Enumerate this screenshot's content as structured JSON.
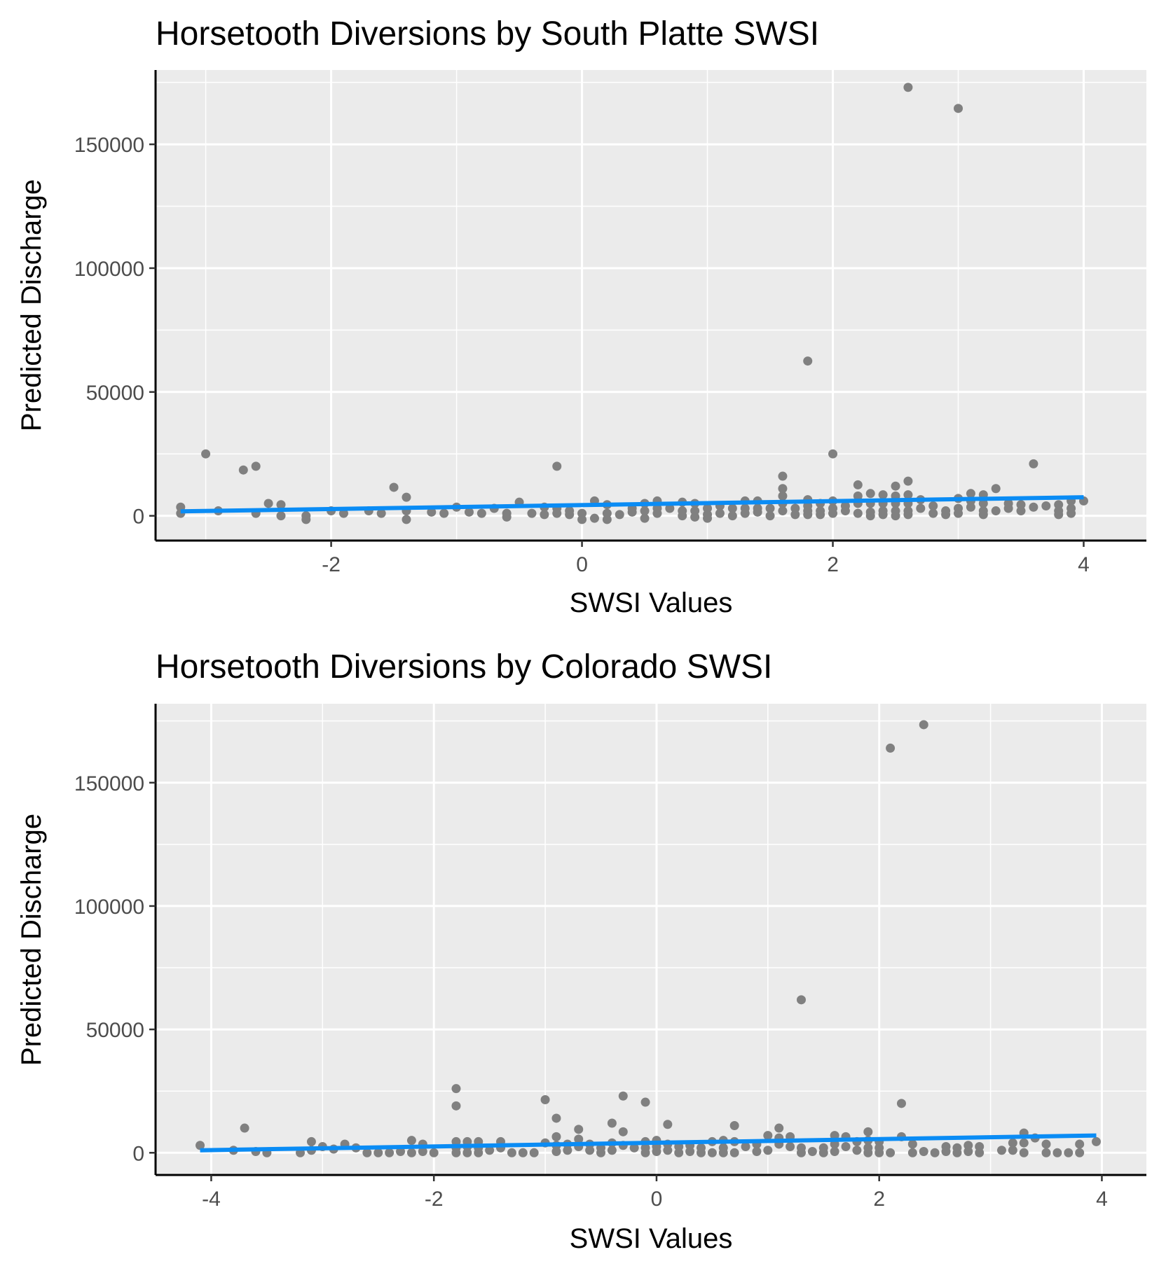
{
  "chart_data": [
    {
      "type": "scatter",
      "title": "Horsetooth Diversions by South Platte SWSI",
      "xlabel": "SWSI Values",
      "ylabel": "Predicted Discharge",
      "xlim": [
        -3.4,
        4.5
      ],
      "ylim": [
        -10000,
        180000
      ],
      "x_ticks": [
        -2,
        0,
        2,
        4
      ],
      "y_ticks": [
        0,
        50000,
        100000,
        150000
      ],
      "x_tick_labels": [
        "-2",
        "0",
        "2",
        "4"
      ],
      "y_tick_labels": [
        "0",
        "50000",
        "100000",
        "150000"
      ],
      "grid": true,
      "point_color": "#808080",
      "line_color": "#0a8cf5",
      "panel_color": "#ebebeb",
      "trend_line": {
        "x": [
          -3.2,
          4.0
        ],
        "y": [
          1800,
          7500
        ]
      },
      "points": [
        [
          -3.2,
          3500
        ],
        [
          -3.2,
          1000
        ],
        [
          -3.0,
          25000
        ],
        [
          -2.9,
          2000
        ],
        [
          -2.7,
          18500
        ],
        [
          -2.6,
          20000
        ],
        [
          -2.6,
          1000
        ],
        [
          -2.5,
          5000
        ],
        [
          -2.4,
          4500
        ],
        [
          -2.4,
          0
        ],
        [
          -2.2,
          0
        ],
        [
          -2.2,
          -1500
        ],
        [
          -2.0,
          2000
        ],
        [
          -1.9,
          1000
        ],
        [
          -1.7,
          2000
        ],
        [
          -1.6,
          1000
        ],
        [
          -1.5,
          11500
        ],
        [
          -1.4,
          7500
        ],
        [
          -1.4,
          2000
        ],
        [
          -1.4,
          -1500
        ],
        [
          -1.2,
          1500
        ],
        [
          -1.1,
          1000
        ],
        [
          -1.0,
          3500
        ],
        [
          -0.9,
          1500
        ],
        [
          -0.8,
          1000
        ],
        [
          -0.7,
          3000
        ],
        [
          -0.6,
          1000
        ],
        [
          -0.6,
          -500
        ],
        [
          -0.5,
          5500
        ],
        [
          -0.4,
          1000
        ],
        [
          -0.3,
          3500
        ],
        [
          -0.3,
          500
        ],
        [
          -0.2,
          20000
        ],
        [
          -0.2,
          3000
        ],
        [
          -0.2,
          1000
        ],
        [
          -0.1,
          2000
        ],
        [
          -0.1,
          500
        ],
        [
          0.0,
          1000
        ],
        [
          0.0,
          -1500
        ],
        [
          0.1,
          6000
        ],
        [
          0.1,
          -1000
        ],
        [
          0.2,
          4500
        ],
        [
          0.2,
          1000
        ],
        [
          0.2,
          -1500
        ],
        [
          0.3,
          500
        ],
        [
          0.4,
          3000
        ],
        [
          0.4,
          1500
        ],
        [
          0.5,
          5000
        ],
        [
          0.5,
          2000
        ],
        [
          0.5,
          -1000
        ],
        [
          0.6,
          6000
        ],
        [
          0.6,
          3000
        ],
        [
          0.6,
          1000
        ],
        [
          0.7,
          3000
        ],
        [
          0.8,
          5500
        ],
        [
          0.8,
          2000
        ],
        [
          0.8,
          0
        ],
        [
          0.9,
          5000
        ],
        [
          0.9,
          2000
        ],
        [
          0.9,
          -500
        ],
        [
          1.0,
          3000
        ],
        [
          1.0,
          500
        ],
        [
          1.0,
          -1000
        ],
        [
          1.1,
          4000
        ],
        [
          1.1,
          1000
        ],
        [
          1.2,
          3000
        ],
        [
          1.2,
          0
        ],
        [
          1.3,
          6000
        ],
        [
          1.3,
          3000
        ],
        [
          1.3,
          1000
        ],
        [
          1.4,
          6000
        ],
        [
          1.4,
          3000
        ],
        [
          1.4,
          1500
        ],
        [
          1.5,
          3000
        ],
        [
          1.5,
          0
        ],
        [
          1.6,
          16000
        ],
        [
          1.6,
          11000
        ],
        [
          1.6,
          8000
        ],
        [
          1.6,
          5000
        ],
        [
          1.6,
          2000
        ],
        [
          1.7,
          3000
        ],
        [
          1.7,
          500
        ],
        [
          1.8,
          62500
        ],
        [
          1.8,
          6500
        ],
        [
          1.8,
          4000
        ],
        [
          1.8,
          2000
        ],
        [
          1.8,
          500
        ],
        [
          1.9,
          5000
        ],
        [
          1.9,
          2000
        ],
        [
          1.9,
          500
        ],
        [
          2.0,
          25000
        ],
        [
          2.0,
          6000
        ],
        [
          2.0,
          3000
        ],
        [
          2.0,
          1000
        ],
        [
          2.1,
          4000
        ],
        [
          2.1,
          2000
        ],
        [
          2.2,
          12500
        ],
        [
          2.2,
          8000
        ],
        [
          2.2,
          5000
        ],
        [
          2.2,
          1000
        ],
        [
          2.3,
          9000
        ],
        [
          2.3,
          5000
        ],
        [
          2.3,
          1500
        ],
        [
          2.3,
          0
        ],
        [
          2.4,
          8500
        ],
        [
          2.4,
          5000
        ],
        [
          2.4,
          2000
        ],
        [
          2.4,
          500
        ],
        [
          2.5,
          12000
        ],
        [
          2.5,
          8000
        ],
        [
          2.5,
          5000
        ],
        [
          2.5,
          2000
        ],
        [
          2.5,
          0
        ],
        [
          2.6,
          173000
        ],
        [
          2.6,
          14000
        ],
        [
          2.6,
          8500
        ],
        [
          2.6,
          5000
        ],
        [
          2.6,
          2000
        ],
        [
          2.6,
          500
        ],
        [
          2.7,
          6500
        ],
        [
          2.7,
          3000
        ],
        [
          2.8,
          4000
        ],
        [
          2.8,
          1000
        ],
        [
          2.9,
          2000
        ],
        [
          2.9,
          500
        ],
        [
          3.0,
          164500
        ],
        [
          3.0,
          7000
        ],
        [
          3.0,
          3000
        ],
        [
          3.0,
          1000
        ],
        [
          3.1,
          9000
        ],
        [
          3.1,
          6000
        ],
        [
          3.1,
          3500
        ],
        [
          3.2,
          8500
        ],
        [
          3.2,
          5000
        ],
        [
          3.2,
          2000
        ],
        [
          3.2,
          500
        ],
        [
          3.3,
          11000
        ],
        [
          3.3,
          2000
        ],
        [
          3.4,
          5000
        ],
        [
          3.4,
          3000
        ],
        [
          3.5,
          4500
        ],
        [
          3.5,
          2000
        ],
        [
          3.6,
          21000
        ],
        [
          3.6,
          3500
        ],
        [
          3.7,
          4000
        ],
        [
          3.8,
          4500
        ],
        [
          3.8,
          2000
        ],
        [
          3.8,
          500
        ],
        [
          3.9,
          6000
        ],
        [
          3.9,
          3000
        ],
        [
          3.9,
          1000
        ],
        [
          4.0,
          6000
        ]
      ]
    },
    {
      "type": "scatter",
      "title": "Horsetooth Diversions by Colorado SWSI",
      "xlabel": "SWSI Values",
      "ylabel": "Predicted Discharge",
      "xlim": [
        -4.5,
        4.4
      ],
      "ylim": [
        -9000,
        182000
      ],
      "x_ticks": [
        -4,
        -2,
        0,
        2,
        4
      ],
      "y_ticks": [
        0,
        50000,
        100000,
        150000
      ],
      "x_tick_labels": [
        "-4",
        "-2",
        "0",
        "2",
        "4"
      ],
      "y_tick_labels": [
        "0",
        "50000",
        "100000",
        "150000"
      ],
      "grid": true,
      "point_color": "#808080",
      "line_color": "#0a8cf5",
      "panel_color": "#ebebeb",
      "trend_line": {
        "x": [
          -4.1,
          3.95
        ],
        "y": [
          1000,
          7000
        ]
      },
      "points": [
        [
          -4.1,
          3000
        ],
        [
          -3.8,
          1000
        ],
        [
          -3.7,
          10000
        ],
        [
          -3.6,
          500
        ],
        [
          -3.5,
          0
        ],
        [
          -3.2,
          0
        ],
        [
          -3.1,
          4500
        ],
        [
          -3.1,
          1000
        ],
        [
          -3.0,
          2500
        ],
        [
          -2.9,
          1500
        ],
        [
          -2.8,
          3500
        ],
        [
          -2.7,
          2000
        ],
        [
          -2.6,
          0
        ],
        [
          -2.5,
          0
        ],
        [
          -2.4,
          0
        ],
        [
          -2.3,
          500
        ],
        [
          -2.2,
          5000
        ],
        [
          -2.2,
          0
        ],
        [
          -2.1,
          3500
        ],
        [
          -2.1,
          500
        ],
        [
          -2.0,
          0
        ],
        [
          -1.8,
          26000
        ],
        [
          -1.8,
          19000
        ],
        [
          -1.8,
          4500
        ],
        [
          -1.8,
          2000
        ],
        [
          -1.8,
          0
        ],
        [
          -1.7,
          4500
        ],
        [
          -1.7,
          2500
        ],
        [
          -1.7,
          0
        ],
        [
          -1.6,
          4500
        ],
        [
          -1.6,
          2000
        ],
        [
          -1.6,
          0
        ],
        [
          -1.5,
          1000
        ],
        [
          -1.4,
          4500
        ],
        [
          -1.4,
          2000
        ],
        [
          -1.3,
          0
        ],
        [
          -1.2,
          0
        ],
        [
          -1.1,
          0
        ],
        [
          -1.0,
          21500
        ],
        [
          -1.0,
          4000
        ],
        [
          -0.9,
          14000
        ],
        [
          -0.9,
          6500
        ],
        [
          -0.9,
          3000
        ],
        [
          -0.9,
          500
        ],
        [
          -0.8,
          3500
        ],
        [
          -0.8,
          1000
        ],
        [
          -0.7,
          9500
        ],
        [
          -0.7,
          5500
        ],
        [
          -0.7,
          2500
        ],
        [
          -0.6,
          3500
        ],
        [
          -0.6,
          1000
        ],
        [
          -0.5,
          2000
        ],
        [
          -0.5,
          0
        ],
        [
          -0.4,
          12000
        ],
        [
          -0.4,
          4000
        ],
        [
          -0.4,
          1000
        ],
        [
          -0.3,
          23000
        ],
        [
          -0.3,
          8500
        ],
        [
          -0.3,
          3000
        ],
        [
          -0.2,
          2000
        ],
        [
          -0.1,
          20500
        ],
        [
          -0.1,
          4500
        ],
        [
          -0.1,
          2000
        ],
        [
          -0.1,
          0
        ],
        [
          0.0,
          5000
        ],
        [
          0.0,
          2500
        ],
        [
          0.0,
          500
        ],
        [
          0.1,
          11500
        ],
        [
          0.1,
          3500
        ],
        [
          0.1,
          1000
        ],
        [
          0.2,
          2500
        ],
        [
          0.2,
          0
        ],
        [
          0.3,
          3000
        ],
        [
          0.3,
          500
        ],
        [
          0.4,
          2000
        ],
        [
          0.4,
          0
        ],
        [
          0.5,
          4500
        ],
        [
          0.5,
          0
        ],
        [
          0.6,
          5000
        ],
        [
          0.6,
          2000
        ],
        [
          0.6,
          0
        ],
        [
          0.7,
          11000
        ],
        [
          0.7,
          4500
        ],
        [
          0.7,
          0
        ],
        [
          0.8,
          2500
        ],
        [
          0.9,
          3500
        ],
        [
          0.9,
          500
        ],
        [
          1.0,
          1000
        ],
        [
          1.0,
          7000
        ],
        [
          1.1,
          10000
        ],
        [
          1.1,
          6000
        ],
        [
          1.1,
          3500
        ],
        [
          1.2,
          6500
        ],
        [
          1.2,
          2500
        ],
        [
          1.3,
          62000
        ],
        [
          1.3,
          2000
        ],
        [
          1.3,
          0
        ],
        [
          1.4,
          500
        ],
        [
          1.5,
          2000
        ],
        [
          1.5,
          0
        ],
        [
          1.6,
          7000
        ],
        [
          1.6,
          3500
        ],
        [
          1.6,
          500
        ],
        [
          1.7,
          6500
        ],
        [
          1.7,
          2500
        ],
        [
          1.8,
          4500
        ],
        [
          1.8,
          1000
        ],
        [
          1.9,
          8500
        ],
        [
          1.9,
          5000
        ],
        [
          1.9,
          2000
        ],
        [
          1.9,
          0
        ],
        [
          2.0,
          4500
        ],
        [
          2.0,
          2000
        ],
        [
          2.0,
          0
        ],
        [
          2.1,
          164000
        ],
        [
          2.1,
          0
        ],
        [
          2.2,
          20000
        ],
        [
          2.2,
          6500
        ],
        [
          2.3,
          3500
        ],
        [
          2.3,
          0
        ],
        [
          2.4,
          173500
        ],
        [
          2.4,
          500
        ],
        [
          2.5,
          0
        ],
        [
          2.6,
          2500
        ],
        [
          2.6,
          500
        ],
        [
          2.7,
          2000
        ],
        [
          2.7,
          0
        ],
        [
          2.8,
          3000
        ],
        [
          2.8,
          500
        ],
        [
          2.9,
          2500
        ],
        [
          2.9,
          0
        ],
        [
          3.1,
          1000
        ],
        [
          3.2,
          4000
        ],
        [
          3.2,
          1000
        ],
        [
          3.3,
          8000
        ],
        [
          3.3,
          4000
        ],
        [
          3.3,
          0
        ],
        [
          3.4,
          6000
        ],
        [
          3.5,
          3500
        ],
        [
          3.5,
          0
        ],
        [
          3.6,
          0
        ],
        [
          3.7,
          0
        ],
        [
          3.8,
          3500
        ],
        [
          3.8,
          0
        ],
        [
          3.95,
          4500
        ]
      ]
    }
  ]
}
